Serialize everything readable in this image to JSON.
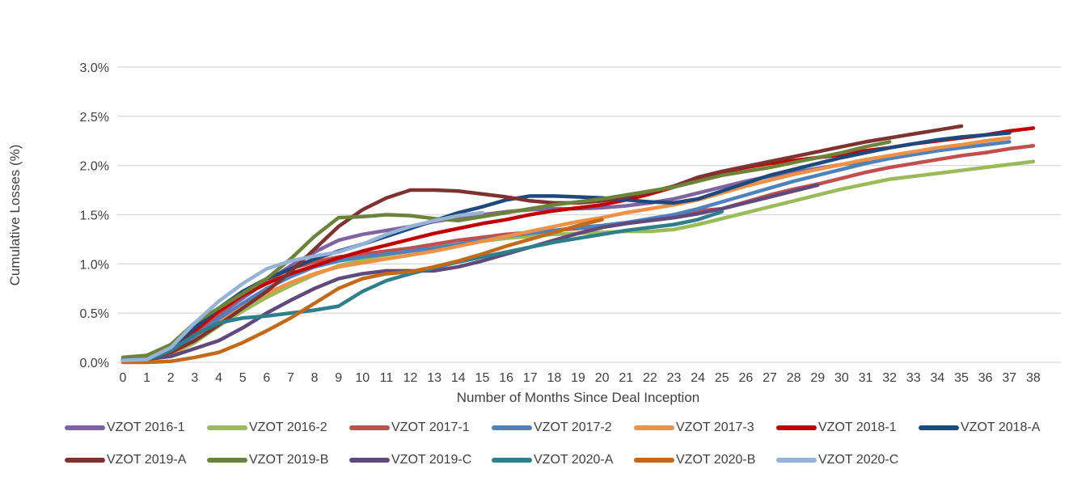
{
  "chart_data": {
    "type": "line",
    "title": "",
    "xlabel": "Number of Months Since Deal Inception",
    "ylabel": "Cumulative Losses (%)",
    "x": [
      0,
      1,
      2,
      3,
      4,
      5,
      6,
      7,
      8,
      9,
      10,
      11,
      12,
      13,
      14,
      15,
      16,
      17,
      18,
      19,
      20,
      21,
      22,
      23,
      24,
      25,
      26,
      27,
      28,
      29,
      30,
      31,
      32,
      33,
      34,
      35,
      36,
      37,
      38
    ],
    "xlim": [
      0,
      38
    ],
    "ylim": [
      0,
      3.0
    ],
    "yticks": [
      "0.0%",
      "0.5%",
      "1.0%",
      "1.5%",
      "2.0%",
      "2.5%",
      "3.0%"
    ],
    "ytick_values": [
      0,
      0.5,
      1.0,
      1.5,
      2.0,
      2.5,
      3.0
    ],
    "grid": "horizontal",
    "legend_position": "bottom",
    "series": [
      {
        "name": "VZOT 2016-1",
        "color": "#8064A2",
        "values": [
          0.02,
          0.03,
          0.1,
          0.28,
          0.48,
          0.65,
          0.82,
          0.98,
          1.12,
          1.24,
          1.3,
          1.34,
          1.38,
          1.43,
          1.47,
          1.5,
          1.53,
          1.55,
          1.56,
          1.56,
          1.57,
          1.59,
          1.62,
          1.66,
          1.72,
          1.78,
          1.84,
          1.89,
          1.93,
          1.97,
          2.01,
          2.04,
          null,
          null,
          null,
          null,
          null,
          null,
          null
        ]
      },
      {
        "name": "VZOT 2016-2",
        "color": "#9BBB59",
        "values": [
          0.02,
          0.03,
          0.08,
          0.2,
          0.37,
          0.52,
          0.66,
          0.78,
          0.89,
          0.98,
          1.04,
          1.09,
          1.13,
          1.17,
          1.2,
          1.23,
          1.26,
          1.28,
          1.3,
          1.31,
          1.32,
          1.33,
          1.33,
          1.35,
          1.4,
          1.46,
          1.52,
          1.58,
          1.64,
          1.7,
          1.76,
          1.81,
          1.86,
          1.89,
          1.92,
          1.95,
          1.98,
          2.01,
          2.04
        ]
      },
      {
        "name": "VZOT 2017-1",
        "color": "#C0504D",
        "values": [
          0.02,
          0.04,
          0.12,
          0.3,
          0.5,
          0.68,
          0.83,
          0.95,
          1.02,
          1.07,
          1.1,
          1.13,
          1.16,
          1.2,
          1.24,
          1.27,
          1.3,
          1.32,
          1.34,
          1.36,
          1.38,
          1.41,
          1.45,
          1.5,
          1.54,
          1.56,
          1.63,
          1.7,
          1.76,
          1.81,
          1.87,
          1.93,
          1.98,
          2.02,
          2.06,
          2.1,
          2.13,
          2.17,
          2.2
        ]
      },
      {
        "name": "VZOT 2017-2",
        "color": "#4F81BD",
        "values": [
          0.02,
          0.03,
          0.1,
          0.26,
          0.44,
          0.6,
          0.75,
          0.87,
          0.97,
          1.03,
          1.07,
          1.1,
          1.13,
          1.16,
          1.2,
          1.24,
          1.28,
          1.31,
          1.34,
          1.37,
          1.39,
          1.42,
          1.46,
          1.5,
          1.56,
          1.63,
          1.7,
          1.77,
          1.84,
          1.9,
          1.96,
          2.02,
          2.07,
          2.11,
          2.15,
          2.18,
          2.21,
          2.24,
          null
        ]
      },
      {
        "name": "VZOT 2017-3",
        "color": "#EF9245",
        "values": [
          0.02,
          0.03,
          0.08,
          0.22,
          0.4,
          0.56,
          0.7,
          0.81,
          0.9,
          0.97,
          1.01,
          1.05,
          1.09,
          1.13,
          1.18,
          1.23,
          1.28,
          1.33,
          1.38,
          1.43,
          1.47,
          1.52,
          1.56,
          1.6,
          1.65,
          1.72,
          1.79,
          1.85,
          1.91,
          1.96,
          2.01,
          2.06,
          2.1,
          2.14,
          2.18,
          2.21,
          2.25,
          2.28,
          null
        ]
      },
      {
        "name": "VZOT 2018-1",
        "color": "#C00000",
        "values": [
          0.02,
          0.04,
          0.13,
          0.32,
          0.52,
          0.68,
          0.8,
          0.9,
          0.98,
          1.06,
          1.13,
          1.19,
          1.25,
          1.31,
          1.36,
          1.41,
          1.45,
          1.5,
          1.54,
          1.57,
          1.6,
          1.65,
          1.71,
          1.78,
          1.86,
          1.93,
          1.98,
          2.02,
          2.05,
          2.08,
          2.11,
          2.15,
          2.18,
          2.22,
          2.25,
          2.28,
          2.31,
          2.35,
          2.38
        ]
      },
      {
        "name": "VZOT 2018-A",
        "color": "#1F497D",
        "values": [
          0.02,
          0.04,
          0.15,
          0.35,
          0.55,
          0.72,
          0.85,
          0.95,
          1.05,
          1.13,
          1.2,
          1.28,
          1.36,
          1.44,
          1.52,
          1.58,
          1.65,
          1.69,
          1.69,
          1.68,
          1.67,
          1.65,
          1.63,
          1.62,
          1.66,
          1.74,
          1.82,
          1.9,
          1.96,
          2.02,
          2.08,
          2.13,
          2.18,
          2.22,
          2.26,
          2.29,
          2.31,
          2.33,
          null
        ]
      },
      {
        "name": "VZOT 2019-A",
        "color": "#7F3331",
        "values": [
          0.03,
          0.05,
          0.1,
          0.22,
          0.38,
          0.55,
          0.72,
          0.92,
          1.15,
          1.38,
          1.55,
          1.67,
          1.75,
          1.75,
          1.74,
          1.71,
          1.68,
          1.64,
          1.62,
          1.62,
          1.64,
          1.68,
          1.73,
          1.79,
          1.88,
          1.94,
          1.99,
          2.04,
          2.09,
          2.14,
          2.19,
          2.24,
          2.28,
          2.32,
          2.36,
          2.4,
          null,
          null,
          null
        ]
      },
      {
        "name": "VZOT 2019-B",
        "color": "#6C8339",
        "values": [
          0.05,
          0.07,
          0.18,
          0.4,
          0.55,
          0.7,
          0.85,
          1.05,
          1.28,
          1.47,
          1.48,
          1.5,
          1.49,
          1.46,
          1.44,
          1.48,
          1.52,
          1.56,
          1.6,
          1.63,
          1.66,
          1.7,
          1.74,
          1.78,
          1.84,
          1.9,
          1.94,
          1.98,
          2.03,
          2.08,
          2.13,
          2.19,
          2.24,
          null,
          null,
          null,
          null,
          null,
          null
        ]
      },
      {
        "name": "VZOT 2019-C",
        "color": "#604A7B",
        "values": [
          0.02,
          0.03,
          0.06,
          0.14,
          0.22,
          0.35,
          0.5,
          0.63,
          0.75,
          0.85,
          0.9,
          0.93,
          0.93,
          0.93,
          0.97,
          1.03,
          1.1,
          1.17,
          1.24,
          1.31,
          1.37,
          1.41,
          1.44,
          1.47,
          1.51,
          1.56,
          1.62,
          1.68,
          1.74,
          1.8,
          null,
          null,
          null,
          null,
          null,
          null,
          null,
          null,
          null
        ]
      },
      {
        "name": "VZOT 2020-A",
        "color": "#2E7E8C",
        "values": [
          0.02,
          0.03,
          0.12,
          0.28,
          0.4,
          0.45,
          0.47,
          0.5,
          0.53,
          0.57,
          0.72,
          0.83,
          0.9,
          0.96,
          1.02,
          1.07,
          1.12,
          1.17,
          1.22,
          1.26,
          1.3,
          1.34,
          1.37,
          1.4,
          1.45,
          1.53,
          null,
          null,
          null,
          null,
          null,
          null,
          null,
          null,
          null,
          null,
          null,
          null,
          null
        ]
      },
      {
        "name": "VZOT 2020-B",
        "color": "#C2691A",
        "values": [
          0.0,
          0.0,
          0.01,
          0.05,
          0.1,
          0.2,
          0.32,
          0.45,
          0.6,
          0.75,
          0.85,
          0.9,
          0.92,
          0.97,
          1.03,
          1.1,
          1.18,
          1.25,
          1.32,
          1.39,
          1.45,
          null,
          null,
          null,
          null,
          null,
          null,
          null,
          null,
          null,
          null,
          null,
          null,
          null,
          null,
          null,
          null,
          null,
          null
        ]
      },
      {
        "name": "VZOT 2020-C",
        "color": "#95B3D7",
        "values": [
          0.02,
          0.03,
          0.15,
          0.4,
          0.62,
          0.8,
          0.95,
          1.03,
          1.08,
          1.12,
          1.2,
          1.3,
          1.38,
          1.44,
          1.49,
          1.52,
          null,
          null,
          null,
          null,
          null,
          null,
          null,
          null,
          null,
          null,
          null,
          null,
          null,
          null,
          null,
          null,
          null,
          null,
          null,
          null,
          null,
          null,
          null
        ]
      }
    ]
  },
  "colors": {
    "grid": "#D9D9D9",
    "text": "#404040",
    "background": "#FFFFFF"
  }
}
